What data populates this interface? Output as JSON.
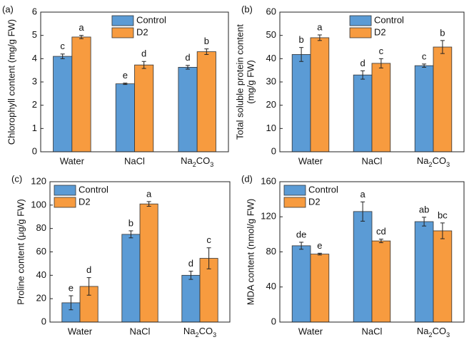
{
  "chart_data": [
    {
      "type": "bar",
      "label": "(a)",
      "ylabel": [
        "Chlorophyll content (mg/g FW)"
      ],
      "categories": [
        "Water",
        "NaCl",
        "Na2CO3"
      ],
      "ylim": [
        0,
        6
      ],
      "yticks": [
        0,
        1,
        2,
        3,
        4,
        5,
        6
      ],
      "legend": "upper center",
      "series": [
        {
          "name": "Control",
          "color": "#5b9bd5",
          "values": [
            4.1,
            2.92,
            3.63
          ],
          "errors": [
            0.1,
            0.03,
            0.08
          ],
          "letters": [
            "c",
            "e",
            "d"
          ]
        },
        {
          "name": "D2",
          "color": "#f79b3f",
          "values": [
            4.93,
            3.73,
            4.3
          ],
          "errors": [
            0.07,
            0.15,
            0.12
          ],
          "letters": [
            "a",
            "d",
            "b"
          ]
        }
      ]
    },
    {
      "type": "bar",
      "label": "(b)",
      "ylabel": [
        "Total soluble protein content",
        "(mg/g FW)"
      ],
      "categories": [
        "Water",
        "NaCl",
        "Na2CO3"
      ],
      "ylim": [
        0,
        60
      ],
      "yticks": [
        0,
        10,
        20,
        30,
        40,
        50,
        60
      ],
      "legend": "upper center",
      "series": [
        {
          "name": "Control",
          "color": "#5b9bd5",
          "values": [
            41.8,
            33,
            37
          ],
          "errors": [
            3,
            1.8,
            0.7
          ],
          "letters": [
            "b",
            "d",
            "c"
          ]
        },
        {
          "name": "D2",
          "color": "#f79b3f",
          "values": [
            49,
            38,
            45
          ],
          "errors": [
            1.2,
            2,
            2.8
          ],
          "letters": [
            "a",
            "c",
            "b"
          ]
        }
      ]
    },
    {
      "type": "bar",
      "label": "(c)",
      "ylabel": [
        "Proline content (μg/g FW)"
      ],
      "categories": [
        "Water",
        "NaCl",
        "Na2CO3"
      ],
      "ylim": [
        0,
        120
      ],
      "yticks": [
        0,
        20,
        40,
        60,
        80,
        100,
        120
      ],
      "legend": "upper left",
      "series": [
        {
          "name": "Control",
          "color": "#5b9bd5",
          "values": [
            16.5,
            75,
            40
          ],
          "errors": [
            6,
            3,
            3.5
          ],
          "letters": [
            "e",
            "b",
            "d"
          ]
        },
        {
          "name": "D2",
          "color": "#f79b3f",
          "values": [
            30.5,
            101,
            54.5
          ],
          "errors": [
            7.5,
            2,
            9
          ],
          "letters": [
            "d",
            "a",
            "c"
          ]
        }
      ]
    },
    {
      "type": "bar",
      "label": "(d)",
      "ylabel": [
        "MDA content (nmol/g FW)"
      ],
      "categories": [
        "Water",
        "NaCl",
        "Na2CO3"
      ],
      "ylim": [
        0,
        160
      ],
      "yticks": [
        0,
        40,
        80,
        120,
        160
      ],
      "legend": "upper left",
      "series": [
        {
          "name": "Control",
          "color": "#5b9bd5",
          "values": [
            87,
            126,
            114.5
          ],
          "errors": [
            4,
            11,
            5
          ],
          "letters": [
            "de",
            "a",
            "ab"
          ]
        },
        {
          "name": "D2",
          "color": "#f79b3f",
          "values": [
            77.5,
            92.5,
            104
          ],
          "errors": [
            1,
            2,
            9
          ],
          "letters": [
            "e",
            "cd",
            "bc"
          ]
        }
      ]
    }
  ]
}
